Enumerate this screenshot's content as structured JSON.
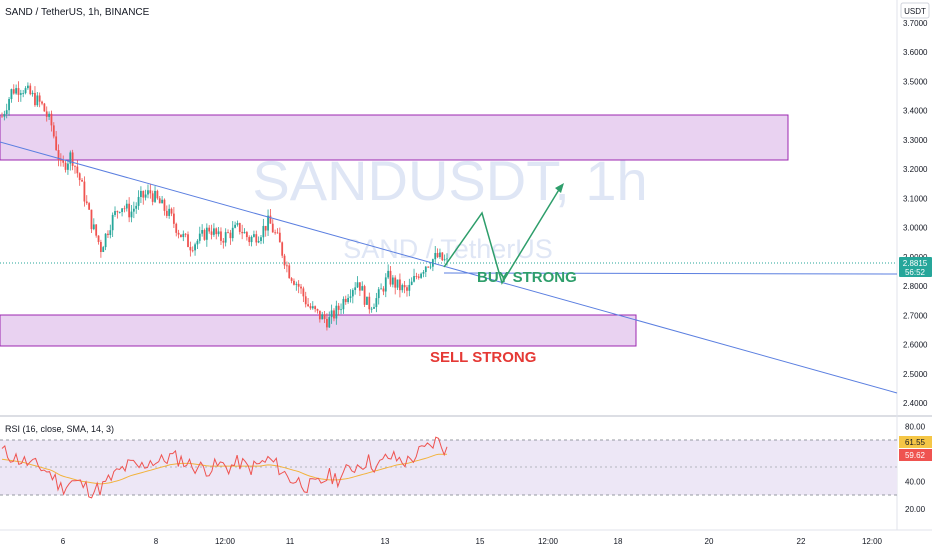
{
  "header": {
    "symbol_title": "SAND / TetherUS, 1h, BINANCE",
    "currency": "USDT"
  },
  "watermark": {
    "main": "SANDUSDT, 1h",
    "sub": "SAND / TetherUS"
  },
  "annotations": {
    "buy": "BUY STRONG",
    "sell": "SELL STRONG"
  },
  "price_badge": {
    "price": "2.8815",
    "countdown": "56:52"
  },
  "rsi_badges": {
    "rsi": "61.55",
    "rsi_ma": "59.62"
  },
  "colors": {
    "up": "#26a69a",
    "down": "#ef5350",
    "zone_fill": "#e9d2f1",
    "zone_border": "#9c27b0",
    "trendline": "#5b7fe0",
    "arrow": "#2e9e6b",
    "rsi_line": "#ef5350",
    "rsi_ma": "#f2b33d",
    "rsi_band": "#ede7f6",
    "watermark": "#dfe6f5"
  },
  "chart_data": [
    {
      "type": "candlestick",
      "title": "SAND / TetherUS, 1h, BINANCE",
      "x_ticks": [
        "6",
        "8",
        "12:00",
        "11",
        "13",
        "15",
        "12:00",
        "18",
        "20",
        "22",
        "12:00"
      ],
      "y_ticks": [
        "3.7000",
        "3.6000",
        "3.5000",
        "3.4000",
        "3.3000",
        "3.2000",
        "3.1000",
        "3.0000",
        "2.9000",
        "2.8000",
        "2.7000",
        "2.6000",
        "2.5000",
        "2.4000"
      ],
      "ylim": [
        2.38,
        3.75
      ],
      "unit": "USDT",
      "close_path": [
        3.38,
        3.47,
        3.48,
        3.45,
        3.42,
        3.35,
        3.2,
        3.25,
        3.15,
        3.02,
        2.93,
        3.02,
        3.08,
        3.05,
        3.1,
        3.12,
        3.08,
        3.04,
        2.98,
        2.94,
        2.96,
        3.0,
        2.96,
        2.98,
        3.0,
        2.96,
        2.98,
        3.02,
        2.95,
        2.85,
        2.8,
        2.73,
        2.7,
        2.68,
        2.72,
        2.78,
        2.82,
        2.73,
        2.76,
        2.83,
        2.8,
        2.78,
        2.84,
        2.88,
        2.9,
        2.88
      ],
      "last_price": 2.8815,
      "zones": [
        {
          "label": "resistance",
          "from": 3.24,
          "to": 3.4
        },
        {
          "label": "support",
          "from": 2.6,
          "to": 2.71
        }
      ],
      "trendline": [
        {
          "y": 3.29
        },
        {
          "y": 2.44
        }
      ],
      "horizontal_level": 2.845,
      "projection": [
        2.88,
        3.05,
        2.84,
        3.16
      ]
    },
    {
      "type": "line",
      "title": "RSI (16, close, SMA, 14, 3)",
      "y_ticks": [
        "80.00",
        "60.00",
        "40.00",
        "20.00"
      ],
      "ylim": [
        15,
        85
      ],
      "bands": [
        30,
        70
      ],
      "mid": 50,
      "series": [
        {
          "values": [
            62,
            58,
            55,
            52,
            50,
            45,
            35,
            40,
            38,
            33,
            35,
            42,
            48,
            52,
            50,
            55,
            54,
            58,
            56,
            52,
            50,
            49,
            52,
            50,
            54,
            49,
            52,
            56,
            50,
            42,
            40,
            36,
            38,
            44,
            42,
            48,
            52,
            55,
            50,
            58,
            56,
            54,
            60,
            64,
            70,
            62
          ]
        },
        {
          "values": [
            56,
            55,
            54,
            52,
            50,
            48,
            44,
            42,
            40,
            39,
            38,
            39,
            41,
            44,
            46,
            48,
            50,
            52,
            53,
            53,
            52,
            51,
            51,
            51,
            51,
            51,
            51,
            52,
            51,
            49,
            47,
            44,
            42,
            41,
            41,
            42,
            44,
            46,
            48,
            50,
            52,
            53,
            55,
            57,
            59.6,
            59.6
          ]
        }
      ],
      "last_values": [
        61.55,
        59.62
      ]
    }
  ]
}
